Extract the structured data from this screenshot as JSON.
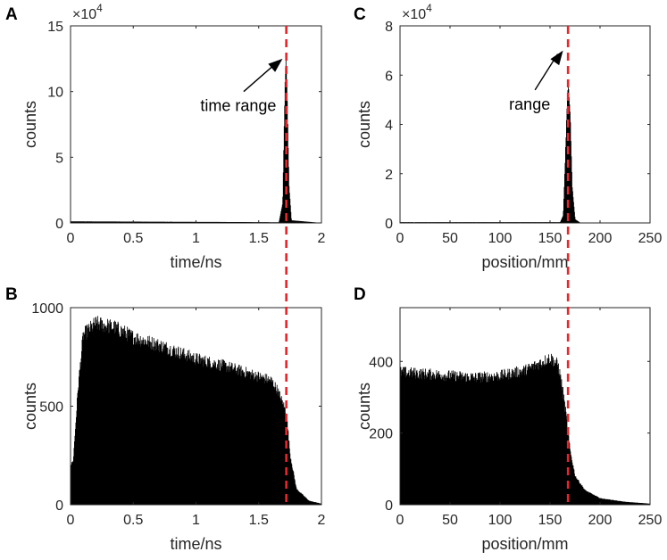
{
  "colors": {
    "bars": "#000000",
    "marker": "#e8252a",
    "axis": "#262626"
  },
  "chart_data": [
    {
      "id": "A",
      "type": "bar",
      "panel_label": "A",
      "xlabel": "time/ns",
      "ylabel": "counts",
      "xlim": [
        0,
        2
      ],
      "ylim": [
        0,
        150000
      ],
      "xticks": [
        0,
        0.5,
        1,
        1.5,
        2
      ],
      "xtick_labels": [
        "0",
        "0.5",
        "1",
        "1.5",
        "2"
      ],
      "yticks": [
        0,
        50000,
        100000,
        150000
      ],
      "ytick_labels": [
        "0",
        "5",
        "10",
        "15"
      ],
      "exponent_base": "×10",
      "exponent_power": "4",
      "marker_x": 1.72,
      "annotation": {
        "text": "time range",
        "arrow_from": [
          1.38,
          100000
        ],
        "arrow_to": [
          1.69,
          125000
        ]
      },
      "profile": [
        [
          0,
          1200
        ],
        [
          1.5,
          600
        ],
        [
          1.66,
          500
        ],
        [
          1.69,
          15000
        ],
        [
          1.705,
          90000
        ],
        [
          1.715,
          128000
        ],
        [
          1.725,
          100000
        ],
        [
          1.74,
          30000
        ],
        [
          1.76,
          2000
        ],
        [
          2,
          0
        ]
      ]
    },
    {
      "id": "B",
      "type": "bar",
      "panel_label": "B",
      "xlabel": "time/ns",
      "ylabel": "counts",
      "xlim": [
        0,
        2
      ],
      "ylim": [
        0,
        1000
      ],
      "xticks": [
        0,
        0.5,
        1,
        1.5,
        2
      ],
      "xtick_labels": [
        "0",
        "0.5",
        "1",
        "1.5",
        "2"
      ],
      "yticks": [
        0,
        500,
        1000
      ],
      "ytick_labels": [
        "0",
        "500",
        "1000"
      ],
      "marker_x": 1.72,
      "profile": [
        [
          0,
          200
        ],
        [
          0.02,
          220
        ],
        [
          0.06,
          600
        ],
        [
          0.1,
          860
        ],
        [
          0.2,
          920
        ],
        [
          0.35,
          900
        ],
        [
          0.5,
          850
        ],
        [
          0.75,
          800
        ],
        [
          1.0,
          740
        ],
        [
          1.25,
          700
        ],
        [
          1.5,
          650
        ],
        [
          1.6,
          630
        ],
        [
          1.65,
          580
        ],
        [
          1.7,
          500
        ],
        [
          1.72,
          460
        ],
        [
          1.75,
          250
        ],
        [
          1.8,
          80
        ],
        [
          1.9,
          20
        ],
        [
          2,
          5
        ]
      ]
    },
    {
      "id": "C",
      "type": "bar",
      "panel_label": "C",
      "xlabel": "position/mm",
      "ylabel": "counts",
      "xlim": [
        0,
        250
      ],
      "ylim": [
        0,
        80000
      ],
      "xticks": [
        0,
        50,
        100,
        150,
        200,
        250
      ],
      "xtick_labels": [
        "0",
        "50",
        "100",
        "150",
        "200",
        "250"
      ],
      "yticks": [
        0,
        20000,
        40000,
        60000,
        80000
      ],
      "ytick_labels": [
        "0",
        "2",
        "4",
        "6",
        "8"
      ],
      "exponent_base": "×10",
      "exponent_power": "4",
      "marker_x": 168,
      "annotation": {
        "text": "range",
        "arrow_from": [
          135,
          54000
        ],
        "arrow_to": [
          163,
          70000
        ]
      },
      "profile": [
        [
          0,
          300
        ],
        [
          160,
          300
        ],
        [
          163,
          3000
        ],
        [
          165,
          25000
        ],
        [
          167,
          50000
        ],
        [
          168,
          58000
        ],
        [
          170,
          45000
        ],
        [
          172,
          15000
        ],
        [
          175,
          1500
        ],
        [
          180,
          100
        ],
        [
          250,
          0
        ]
      ]
    },
    {
      "id": "D",
      "type": "bar",
      "panel_label": "D",
      "xlabel": "position/mm",
      "ylabel": "counts",
      "xlim": [
        0,
        250
      ],
      "ylim": [
        0,
        550
      ],
      "xticks": [
        0,
        50,
        100,
        150,
        200,
        250
      ],
      "xtick_labels": [
        "0",
        "50",
        "100",
        "150",
        "200",
        "250"
      ],
      "yticks": [
        0,
        200,
        400
      ],
      "ytick_labels": [
        "0",
        "200",
        "400"
      ],
      "marker_x": 168,
      "profile": [
        [
          0,
          370
        ],
        [
          25,
          365
        ],
        [
          50,
          360
        ],
        [
          75,
          355
        ],
        [
          100,
          360
        ],
        [
          125,
          375
        ],
        [
          140,
          395
        ],
        [
          150,
          410
        ],
        [
          158,
          390
        ],
        [
          162,
          330
        ],
        [
          166,
          250
        ],
        [
          170,
          150
        ],
        [
          175,
          80
        ],
        [
          185,
          40
        ],
        [
          200,
          18
        ],
        [
          225,
          8
        ],
        [
          250,
          3
        ]
      ]
    }
  ]
}
